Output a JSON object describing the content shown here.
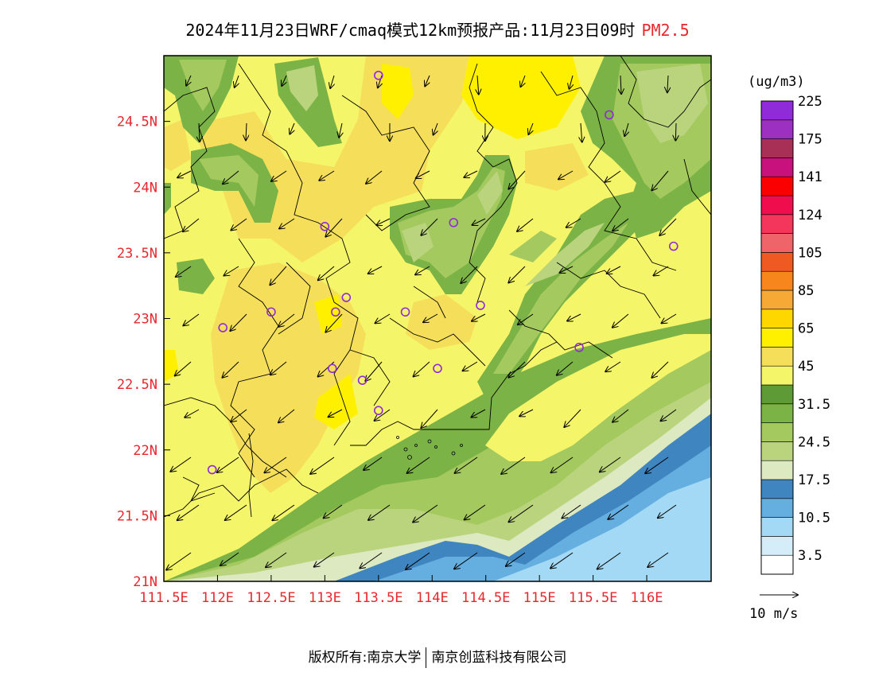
{
  "title": {
    "main": "2024年11月23日WRF/cmaq模式12km预报产品:11月23日09时",
    "pollutant": "PM2.5"
  },
  "map": {
    "lon_range": [
      111.5,
      116.6
    ],
    "lat_range": [
      21.0,
      25.0
    ],
    "x_ticks": [
      {
        "value": 111.5,
        "label": "111.5E"
      },
      {
        "value": 112,
        "label": "112E"
      },
      {
        "value": 112.5,
        "label": "112.5E"
      },
      {
        "value": 113,
        "label": "113E"
      },
      {
        "value": 113.5,
        "label": "113.5E"
      },
      {
        "value": 114,
        "label": "114E"
      },
      {
        "value": 114.5,
        "label": "114.5E"
      },
      {
        "value": 115,
        "label": "115E"
      },
      {
        "value": 115.5,
        "label": "115.5E"
      },
      {
        "value": 116,
        "label": "116E"
      }
    ],
    "y_ticks": [
      {
        "value": 21,
        "label": "21N"
      },
      {
        "value": 21.5,
        "label": "21.5N"
      },
      {
        "value": 22,
        "label": "22N"
      },
      {
        "value": 22.5,
        "label": "22.5N"
      },
      {
        "value": 23,
        "label": "23N"
      },
      {
        "value": 23.5,
        "label": "23.5N"
      },
      {
        "value": 24,
        "label": "24N"
      },
      {
        "value": 24.5,
        "label": "24.5N"
      }
    ],
    "stations": [
      [
        113.5,
        24.85
      ],
      [
        115.65,
        24.55
      ],
      [
        113.0,
        23.7
      ],
      [
        114.2,
        23.73
      ],
      [
        116.25,
        23.55
      ],
      [
        113.2,
        23.16
      ],
      [
        113.1,
        23.05
      ],
      [
        112.5,
        23.05
      ],
      [
        112.05,
        22.93
      ],
      [
        113.75,
        23.05
      ],
      [
        114.45,
        23.1
      ],
      [
        115.37,
        22.78
      ],
      [
        113.07,
        22.62
      ],
      [
        113.35,
        22.53
      ],
      [
        114.05,
        22.62
      ],
      [
        113.5,
        22.3
      ],
      [
        111.95,
        21.85
      ]
    ],
    "wind_arrow_note": "arrows show wind direction, mostly from NE"
  },
  "colorbar": {
    "unit_label": "(ug/m3)",
    "colors": [
      "#ffffff",
      "#d5ecf9",
      "#a3d9f4",
      "#64aee0",
      "#3f86c0",
      "#dde9c0",
      "#bad47e",
      "#a4c95e",
      "#7cb346",
      "#5e9a35",
      "#f5f56a",
      "#f5df5a",
      "#fff000",
      "#ffd700",
      "#f7a935",
      "#f7861d",
      "#ef5a23",
      "#ee6468",
      "#f5365c",
      "#ef0d4d",
      "#fb0000",
      "#c8117c",
      "#a83057",
      "#9c30c0",
      "#8f2bd9"
    ],
    "labels": [
      "3.5",
      "10.5",
      "17.5",
      "24.5",
      "31.5",
      "45",
      "65",
      "85",
      "105",
      "124",
      "141",
      "175",
      "225"
    ],
    "wind_scale_label": "10 m/s"
  },
  "footer": {
    "left": "版权所有:南京大学",
    "right": "南京创蓝科技有限公司"
  }
}
